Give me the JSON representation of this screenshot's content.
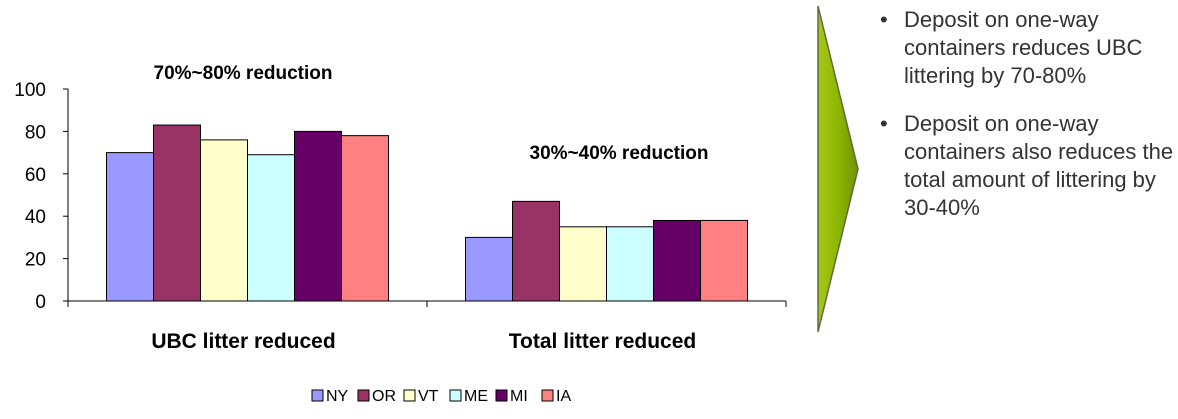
{
  "chart_data": {
    "type": "bar",
    "categories": [
      "UBC litter reduced",
      "Total litter reduced"
    ],
    "series": [
      {
        "name": "NY",
        "color": "#9999FF",
        "values": [
          70,
          30
        ]
      },
      {
        "name": "OR",
        "color": "#993366",
        "values": [
          83,
          47
        ]
      },
      {
        "name": "VT",
        "color": "#FFFFCC",
        "values": [
          76,
          35
        ]
      },
      {
        "name": "ME",
        "color": "#CCFFFF",
        "values": [
          69,
          35
        ]
      },
      {
        "name": "MI",
        "color": "#660066",
        "values": [
          80,
          38
        ]
      },
      {
        "name": "IA",
        "color": "#FF8080",
        "values": [
          78,
          38
        ]
      }
    ],
    "ylim": [
      0,
      100
    ],
    "yticks": [
      "0",
      "20",
      "40",
      "60",
      "80",
      "100"
    ],
    "annotations": [
      "70%~80% reduction",
      "30%~40% reduction"
    ],
    "legend_position": "bottom",
    "grid": false
  },
  "arrow_color": "#8DB600",
  "bullets": [
    "Deposit on one-way containers reduces UBC littering by 70-80%",
    "Deposit on one-way containers also reduces the total amount of littering by 30-40%"
  ],
  "bullet_glyph": "•"
}
